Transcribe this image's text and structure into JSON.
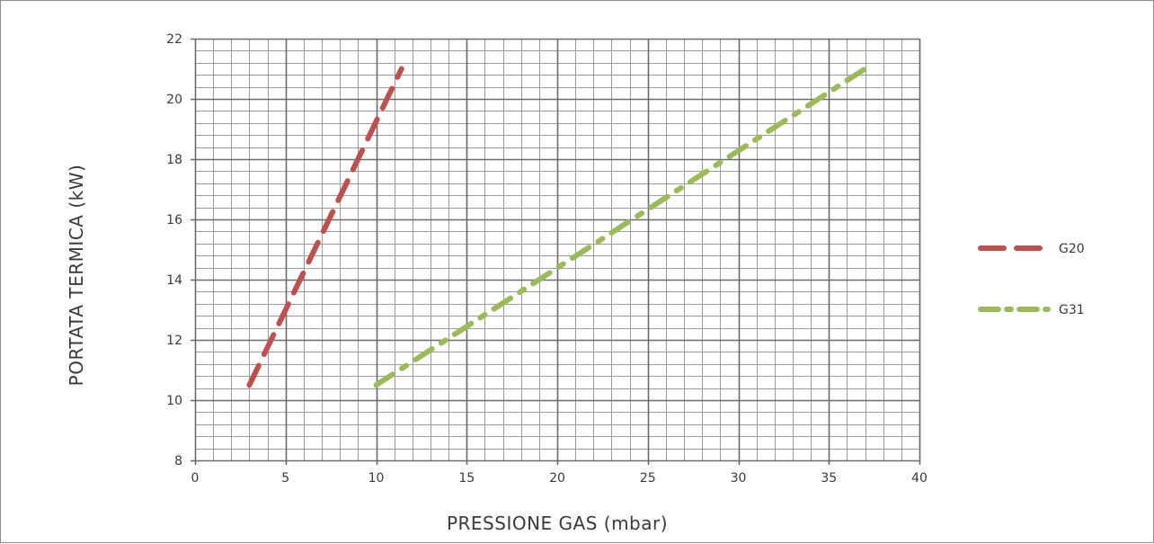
{
  "chart_data": {
    "type": "line",
    "xlabel": "PRESSIONE GAS (mbar)",
    "ylabel": "PORTATA TERMICA (kW)",
    "xlim": [
      0,
      40
    ],
    "ylim": [
      8,
      22
    ],
    "xticks": [
      0,
      5,
      10,
      15,
      20,
      25,
      30,
      35,
      40
    ],
    "yticks": [
      8,
      10,
      12,
      14,
      16,
      18,
      20,
      22
    ],
    "grid": {
      "major": true,
      "minor": true,
      "minor_x_step": 1,
      "minor_y_step": 0.4
    },
    "legend_position": "right",
    "series": [
      {
        "name": "G20",
        "color": "#c0504d",
        "dash": "dash",
        "x": [
          3.0,
          11.4
        ],
        "y": [
          10.5,
          21.0
        ]
      },
      {
        "name": "G31",
        "color": "#9bbb59",
        "dash": "dash-dot",
        "x": [
          10.0,
          37.0
        ],
        "y": [
          10.5,
          21.0
        ]
      }
    ]
  }
}
